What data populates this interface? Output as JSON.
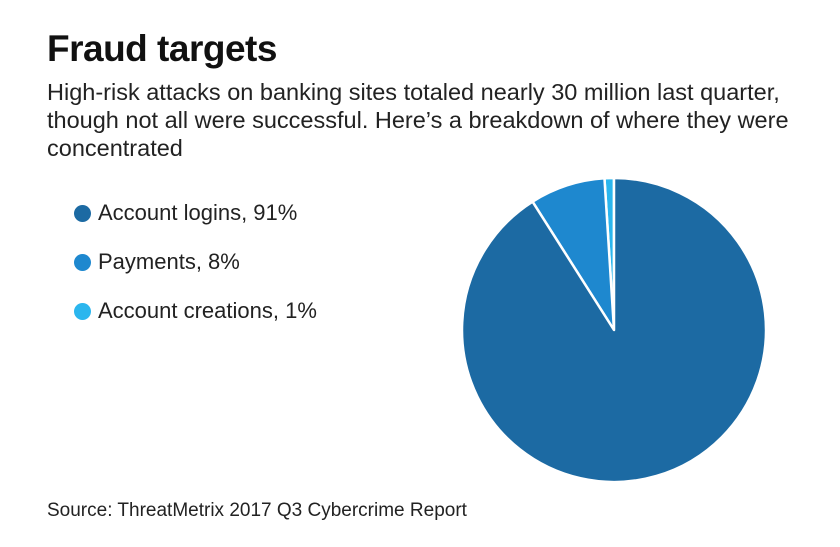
{
  "title": "Fraud targets",
  "subtitle": "High-risk attacks on banking sites totaled nearly 30 million last quarter, though not all were successful. Here’s a breakdown of where they were concentrated",
  "source": "Source: ThreatMetrix 2017 Q3 Cybercrime Report",
  "chart_data": {
    "type": "pie",
    "title": "Fraud targets",
    "categories": [
      "Account logins",
      "Payments",
      "Account creations"
    ],
    "values": [
      91,
      8,
      1
    ],
    "unit": "%",
    "colors": [
      "#1c6aa3",
      "#1e88cf",
      "#2bb6ee"
    ],
    "legend_labels": [
      "Account logins, 91%",
      "Payments, 8%",
      "Account creations, 1%"
    ],
    "legend_position": "left",
    "start_angle": "top, clockwise, largest slice last"
  }
}
